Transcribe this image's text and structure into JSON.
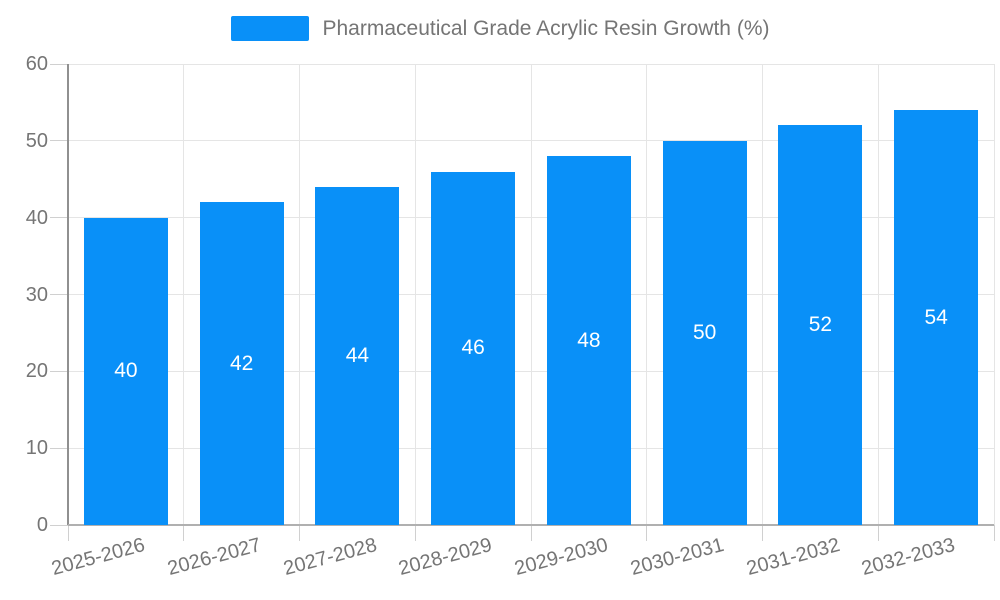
{
  "legend": {
    "label": "Pharmaceutical Grade Acrylic Resin Growth (%)",
    "swatch_color": "#0990F8"
  },
  "chart_data": {
    "type": "bar",
    "title": "Pharmaceutical Grade Acrylic Resin Growth (%)",
    "series_name": "Pharmaceutical Grade Acrylic Resin Growth (%)",
    "categories": [
      "2025-2026",
      "2026-2027",
      "2027-2028",
      "2028-2029",
      "2029-2030",
      "2030-2031",
      "2031-2032",
      "2032-2033"
    ],
    "values": [
      40,
      42,
      44,
      46,
      48,
      50,
      52,
      54
    ],
    "ylim": [
      0,
      60
    ],
    "yticks": [
      0,
      10,
      20,
      30,
      40,
      50,
      60
    ],
    "xlabel": "",
    "ylabel": "",
    "grid": true,
    "legend_position": "top-center",
    "bar_labels": "inside-center",
    "x_label_rotation_deg": -15,
    "colors": {
      "bar": "#0990F8",
      "bar_label": "#ffffff",
      "axis_text": "#757575",
      "gridline": "#e5e5e5",
      "tick": "#d0d0d0",
      "x_axis_line": "#b0b0b0",
      "y_axis_line": "#909090"
    }
  }
}
